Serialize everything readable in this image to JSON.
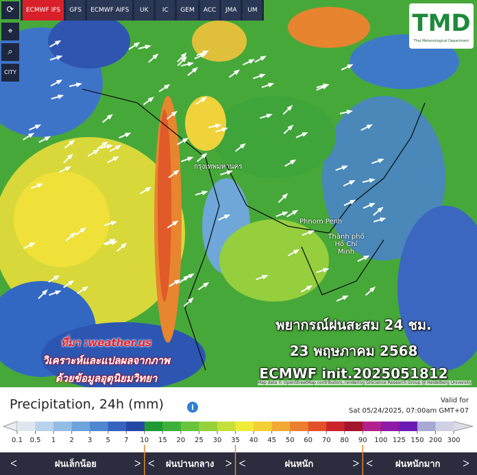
{
  "toolbar": {
    "tabs": [
      "ECMWF IFS",
      "GFS",
      "ECMWF AIFS",
      "UK",
      "IC",
      "GEM",
      "ACC",
      "JMA",
      "UM"
    ],
    "city_button": "CITY"
  },
  "logo": {
    "title": "TMD",
    "subtitle": "Thai Meteorological Department"
  },
  "map": {
    "places": [
      "กรุงเทพมหานคร",
      "Phnom Penh",
      "Thành phố Hồ Chí Minh"
    ],
    "attribution": "Map data © OpenStreetMap contributors, rendering GIScience Research Group @ Heidelberg University"
  },
  "overlay": {
    "forecast_lines": [
      "พยากรณ์ฝนสะสม 24 ชม.",
      "23 พฤษภาคม 2568",
      "ECMWF init.2025051812"
    ],
    "source_lines": [
      "ที่มา :weather.us",
      "วิเคราะห์และแปลผลจากภาพ",
      "ด้วยข้อมูลอุตุนิยมวิทยา"
    ]
  },
  "legend": {
    "title": "Precipitation, 24h (mm)",
    "valid_label": "Valid for",
    "valid_time": "Sat 05/24/2025, 07:00am GMT+07",
    "scale": [
      0.1,
      0.5,
      1,
      2,
      3,
      5,
      7,
      10,
      15,
      20,
      25,
      30,
      35,
      40,
      45,
      50,
      60,
      70,
      80,
      90,
      100,
      125,
      150,
      200,
      300
    ],
    "colors": [
      "#dfe6ee",
      "#b9d3ec",
      "#94bde6",
      "#6fa3dc",
      "#4f86d0",
      "#3563bf",
      "#2447a6",
      "#1e9a34",
      "#3fb13a",
      "#68c43c",
      "#97d23c",
      "#c6e03a",
      "#efec38",
      "#f5cf36",
      "#f3a935",
      "#ec7f2f",
      "#e2512a",
      "#c9252b",
      "#a3152c",
      "#b4208d",
      "#8e1ca6",
      "#6a1bb3",
      "#a7a9d3",
      "#cfd0e4"
    ],
    "categories": [
      "ฝนเล็กน้อย",
      "ฝนปานกลาง",
      "ฝนหนัก",
      "ฝนหนักมาก"
    ]
  }
}
